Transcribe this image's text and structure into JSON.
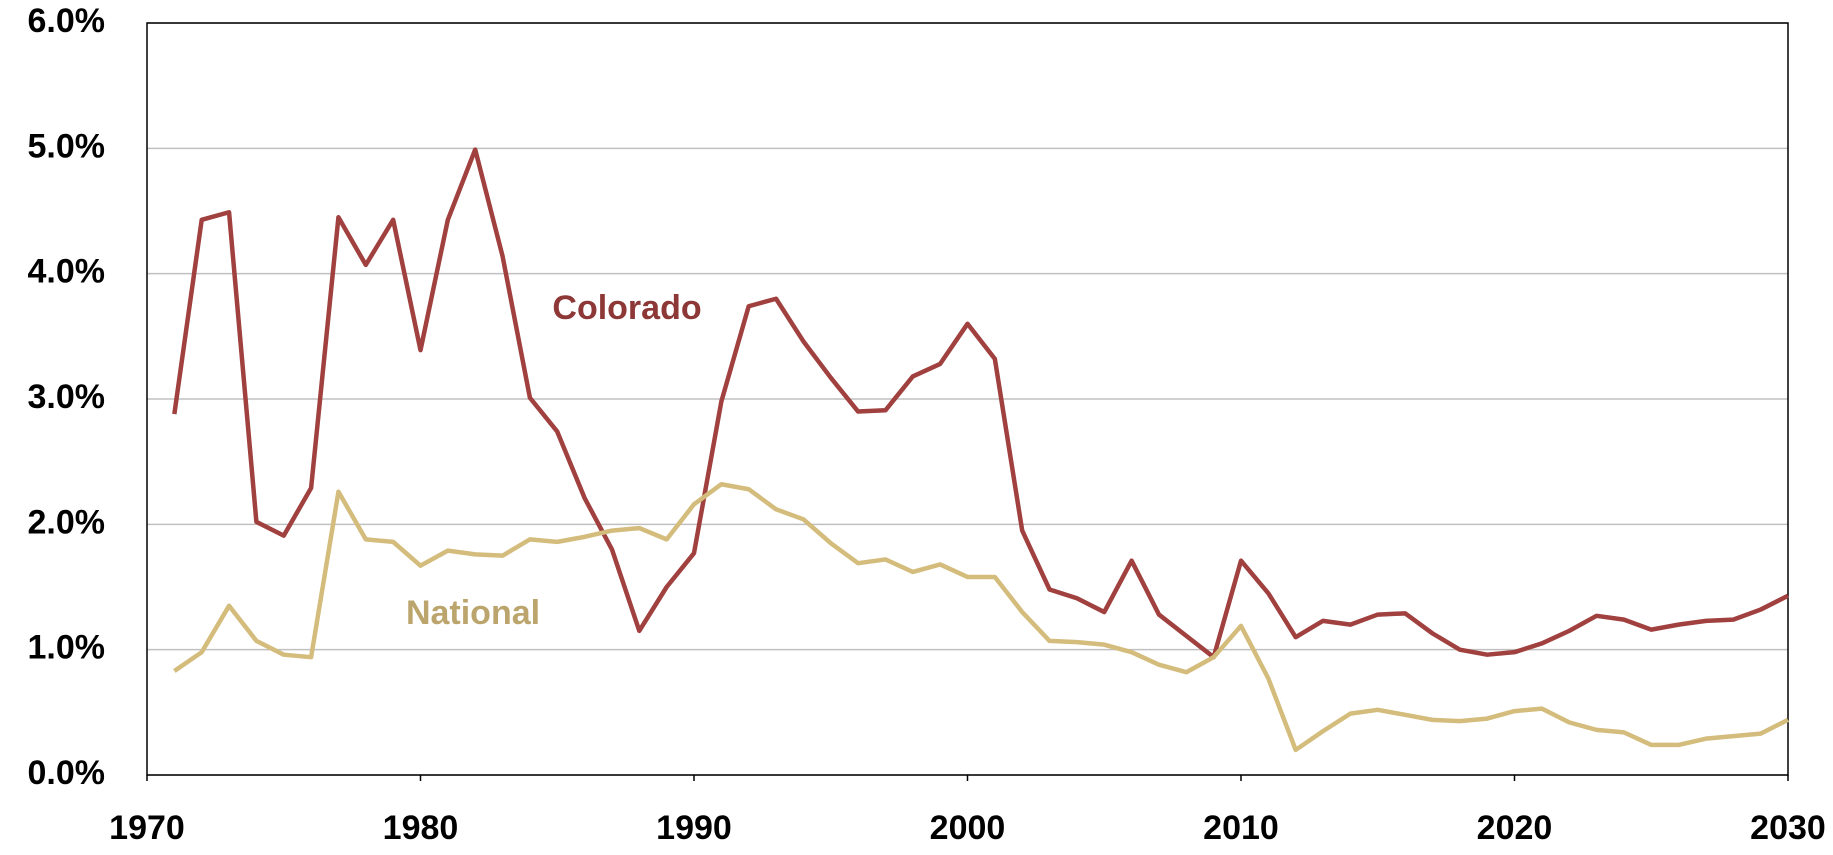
{
  "chart_data": {
    "type": "line",
    "x": [
      1971,
      1972,
      1973,
      1974,
      1975,
      1976,
      1977,
      1978,
      1979,
      1980,
      1981,
      1982,
      1983,
      1984,
      1985,
      1986,
      1987,
      1988,
      1989,
      1990,
      1991,
      1992,
      1993,
      1994,
      1995,
      1996,
      1997,
      1998,
      1999,
      2000,
      2001,
      2002,
      2003,
      2004,
      2005,
      2006,
      2007,
      2008,
      2009,
      2010,
      2011,
      2012,
      2013,
      2014,
      2015,
      2016,
      2017,
      2018,
      2019,
      2020,
      2021,
      2022,
      2023,
      2024,
      2025,
      2026,
      2027,
      2028,
      2029,
      2030
    ],
    "series": [
      {
        "name": "Colorado",
        "color": "#a0403f",
        "values": [
          2.88,
          4.43,
          4.49,
          2.02,
          1.91,
          2.29,
          4.45,
          4.07,
          4.43,
          3.39,
          4.43,
          4.99,
          4.14,
          3.01,
          2.74,
          2.21,
          1.8,
          1.15,
          1.5,
          1.77,
          2.98,
          3.74,
          3.8,
          3.46,
          3.17,
          2.9,
          2.91,
          3.18,
          3.28,
          3.6,
          3.32,
          1.95,
          1.48,
          1.41,
          1.3,
          1.71,
          1.28,
          1.11,
          0.94,
          1.71,
          1.45,
          1.1,
          1.23,
          1.2,
          1.28,
          1.29,
          1.13,
          1.0,
          0.96,
          0.98,
          1.05,
          1.15,
          1.27,
          1.24,
          1.16,
          1.2,
          1.23,
          1.24,
          1.32,
          1.43
        ]
      },
      {
        "name": "National",
        "color": "#d4bc7c",
        "values": [
          0.83,
          0.98,
          1.35,
          1.07,
          0.96,
          0.94,
          2.26,
          1.88,
          1.86,
          1.67,
          1.79,
          1.76,
          1.75,
          1.88,
          1.86,
          1.9,
          1.95,
          1.97,
          1.88,
          2.16,
          2.32,
          2.28,
          2.12,
          2.04,
          1.85,
          1.69,
          1.72,
          1.62,
          1.68,
          1.58,
          1.58,
          1.3,
          1.07,
          1.06,
          1.04,
          0.98,
          0.88,
          0.82,
          0.94,
          1.19,
          0.77,
          0.2,
          0.35,
          0.49,
          0.52,
          0.48,
          0.44,
          0.43,
          0.45,
          0.51,
          0.53,
          0.42,
          0.36,
          0.34,
          0.24,
          0.24,
          0.29,
          0.31,
          0.33,
          0.44
        ]
      }
    ],
    "xlim": [
      1970,
      2030
    ],
    "xticks": [
      1970,
      1980,
      1990,
      2000,
      2010,
      2020,
      2030
    ],
    "ylim": [
      0,
      6
    ],
    "yticks": [
      {
        "value": 0,
        "label": "0.0%"
      },
      {
        "value": 1,
        "label": "1.0%"
      },
      {
        "value": 2,
        "label": "2.0%"
      },
      {
        "value": 3,
        "label": "3.0%"
      },
      {
        "value": 4,
        "label": "4.0%"
      },
      {
        "value": 5,
        "label": "5.0%"
      },
      {
        "value": 6,
        "label": "6.0%"
      }
    ],
    "grid": true
  }
}
